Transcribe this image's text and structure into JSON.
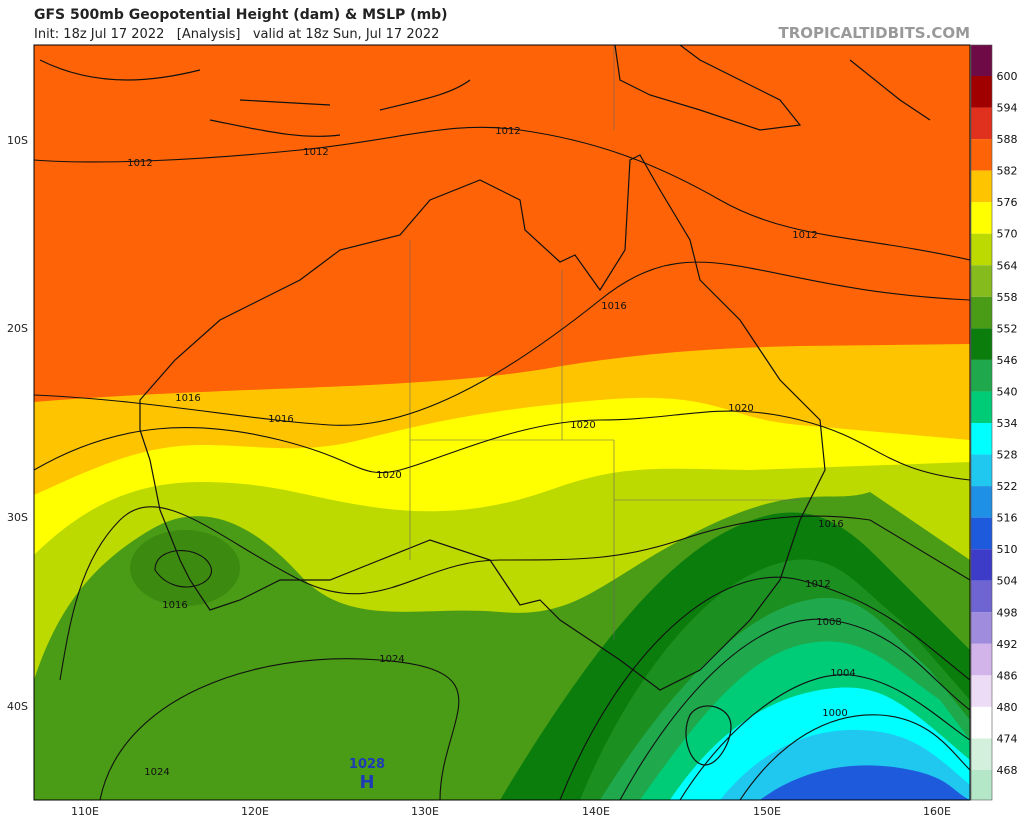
{
  "header": {
    "title": "GFS 500mb Geopotential Height (dam) & MSLP (mb)",
    "subtitle": "Init: 18z Jul 17 2022   [Analysis]   valid at 18z Sun, Jul 17 2022",
    "watermark": "TROPICALTIDBITS.COM"
  },
  "map": {
    "lat_labels": [
      "10S",
      "20S",
      "30S",
      "40S"
    ],
    "lon_labels": [
      "110E",
      "120E",
      "130E",
      "140E",
      "150E",
      "160E"
    ],
    "isobar_labels": [
      "1012",
      "1012",
      "1012",
      "1012",
      "1016",
      "1016",
      "1016",
      "1020",
      "1020",
      "1020",
      "1016",
      "1012",
      "1008",
      "1004",
      "1000",
      "1024",
      "1024",
      "1016"
    ],
    "high": {
      "value": "1028",
      "letter": "H"
    }
  },
  "colorbar": {
    "levels": [
      600,
      594,
      588,
      582,
      576,
      570,
      564,
      558,
      552,
      546,
      540,
      534,
      528,
      522,
      516,
      510,
      504,
      498,
      492,
      486,
      480,
      474,
      468
    ],
    "colors": [
      "#6e0a46",
      "#a00000",
      "#e0301e",
      "#fe6407",
      "#ffc400",
      "#ffff00",
      "#bcd900",
      "#86bb1e",
      "#4a9b16",
      "#0b7d0c",
      "#1fa84c",
      "#00cc78",
      "#00ffff",
      "#20c8f0",
      "#1e90e6",
      "#1e5adc",
      "#3c3cc8",
      "#6e64d2",
      "#a08cdc",
      "#d2b4eb",
      "#ecdcf5",
      "#ffffff",
      "#d2f0dc",
      "#b4e6c8"
    ]
  }
}
